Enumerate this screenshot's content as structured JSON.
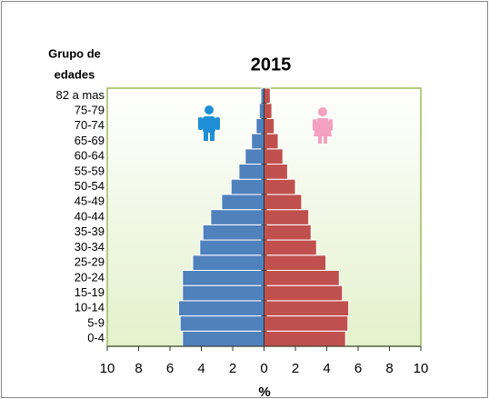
{
  "chart_data": {
    "type": "pyramid",
    "title": "2015",
    "y_title_lines": [
      "Grupo de",
      "edades"
    ],
    "xlabel": "%",
    "categories": [
      "0-4",
      "5-9",
      "10-14",
      "15-19",
      "20-24",
      "25-29",
      "30-34",
      "35-39",
      "40-44",
      "45-49",
      "50-54",
      "55-59",
      "60-64",
      "65-69",
      "70-74",
      "75-79",
      "82 a mas"
    ],
    "series": [
      {
        "color": "#4f81bd",
        "values": [
          -5.2,
          -5.35,
          -5.45,
          -5.2,
          -5.2,
          -4.55,
          -4.1,
          -3.9,
          -3.4,
          -2.7,
          -2.1,
          -1.6,
          -1.2,
          -0.8,
          -0.5,
          -0.3,
          -0.2
        ]
      },
      {
        "color": "#c0504d",
        "values": [
          5.2,
          5.35,
          5.4,
          5.0,
          4.8,
          3.95,
          3.35,
          3.0,
          2.85,
          2.4,
          2.0,
          1.5,
          1.2,
          0.9,
          0.65,
          0.5,
          0.4
        ]
      }
    ],
    "xlim": [
      -10,
      10
    ],
    "xticks": [
      {
        "value": -10,
        "label": "10"
      },
      {
        "value": -8,
        "label": "8"
      },
      {
        "value": -6,
        "label": "6"
      },
      {
        "value": -4,
        "label": "4"
      },
      {
        "value": -2,
        "label": "2"
      },
      0,
      2,
      4,
      6,
      8,
      10
    ]
  }
}
